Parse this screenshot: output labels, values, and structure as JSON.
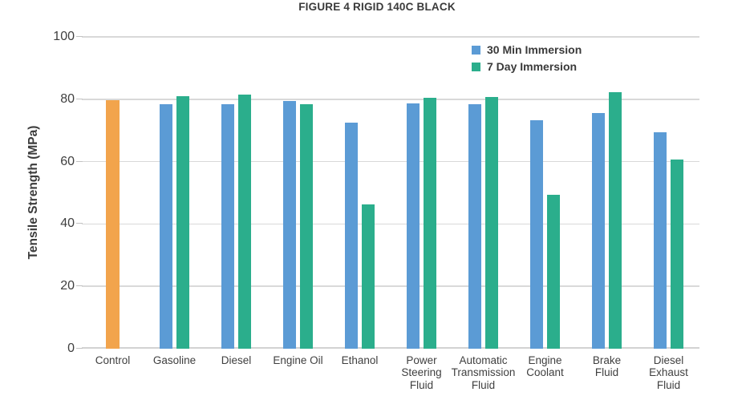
{
  "chart_data": {
    "type": "bar",
    "title": "FIGURE 4 RIGID 140C BLACK",
    "ylabel": "Tensile Strength (MPa)",
    "xlabel": "",
    "ylim": [
      0,
      100
    ],
    "yticks": [
      0,
      20,
      40,
      60,
      80,
      100
    ],
    "grid": true,
    "legend_position": "top-right-inside",
    "categories": [
      "Control",
      "Gasoline",
      "Diesel",
      "Engine Oil",
      "Ethanol",
      "Power Steering Fluid",
      "Automatic Transmission Fluid",
      "Engine Coolant",
      "Brake Fluid",
      "Diesel Exhaust Fluid"
    ],
    "category_label_lines": [
      "Control",
      "Gasoline",
      "Diesel",
      "Engine Oil",
      "Ethanol",
      "Power\nSteering\nFluid",
      "Automatic\nTransmission\nFluid",
      "Engine\nCoolant",
      "Brake\nFluid",
      "Diesel\nExhaust\nFluid"
    ],
    "control": {
      "label": "Control",
      "value": 79.6,
      "color": "#F2A44C"
    },
    "series": [
      {
        "name": "30 Min Immersion",
        "color": "#5B9BD5",
        "values": [
          null,
          78.3,
          78.5,
          79.5,
          72.4,
          78.6,
          78.5,
          73.2,
          75.7,
          69.5
        ]
      },
      {
        "name": "7 Day Immersion",
        "color": "#2BAE8C",
        "values": [
          null,
          81.0,
          81.5,
          78.3,
          46.2,
          80.5,
          80.7,
          49.4,
          82.2,
          60.7
        ]
      }
    ],
    "colors": {
      "gridline": "#d9d9d9",
      "baseline": "#d2d2d2",
      "text": "#3f3f3f"
    }
  }
}
